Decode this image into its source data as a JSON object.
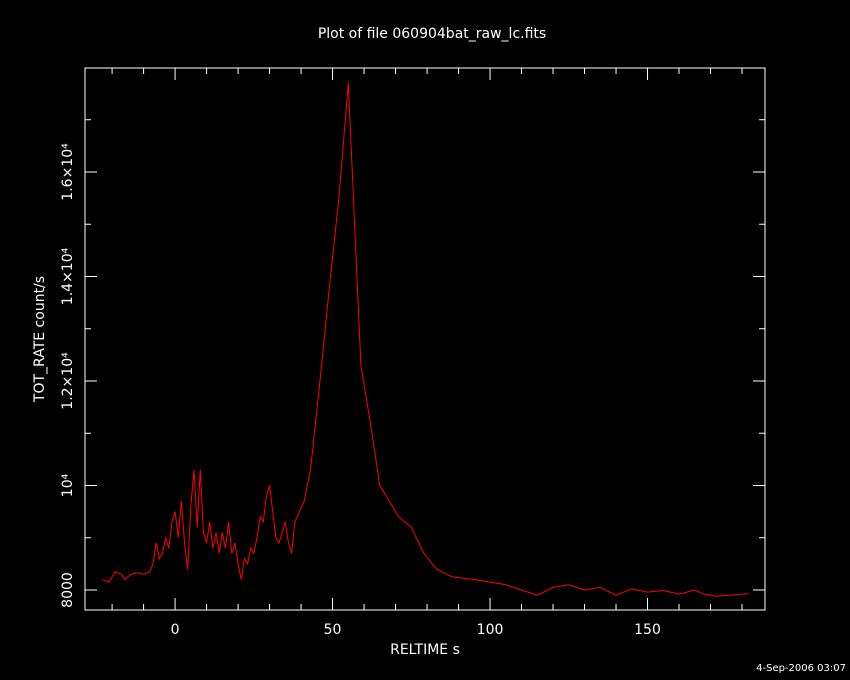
{
  "chart_data": {
    "type": "line",
    "title": "Plot of file 060904bat_raw_lc.fits",
    "x_label": "RELTIME  s",
    "y_label": "TOT_RATE  count/s",
    "footer": "4-Sep-2006 03:07",
    "color": "#ff0000",
    "xlim": [
      -28.6,
      187.3
    ],
    "ylim": [
      7617,
      17990
    ],
    "xticks": [
      0,
      50,
      100,
      150
    ],
    "x_minor_ticks": [
      -20,
      -10,
      10,
      20,
      30,
      40,
      60,
      70,
      80,
      90,
      110,
      120,
      130,
      140,
      160,
      170,
      180
    ],
    "yticks": [
      8000,
      {
        "value": 10000,
        "label": "10⁴"
      },
      {
        "value": 12000,
        "label": "1.2×10⁴"
      },
      {
        "value": 14000,
        "label": "1.4×10⁴"
      },
      {
        "value": 16000,
        "label": "1.6×10⁴"
      }
    ],
    "y_minor_ticks": [
      9000,
      11000,
      13000,
      15000,
      17000
    ],
    "x": [
      -23,
      -21,
      -19,
      -17,
      -16,
      -14,
      -12,
      -10,
      -8,
      -7,
      -6,
      -5,
      -4,
      -3,
      -2,
      -1,
      0,
      1,
      2,
      3,
      4,
      5,
      6,
      7,
      8,
      9,
      10,
      11,
      12,
      13,
      14,
      15,
      16,
      17,
      18,
      19,
      20,
      21,
      22,
      23,
      24,
      25,
      26,
      27,
      28,
      29,
      30,
      31,
      32,
      33,
      34,
      35,
      36,
      37,
      38,
      41,
      43,
      46,
      49,
      52,
      55,
      57,
      59,
      62,
      65,
      68,
      71,
      75,
      79,
      83,
      88,
      95,
      100,
      105,
      110,
      115,
      120,
      125,
      130,
      135,
      140,
      145,
      150,
      155,
      160,
      165,
      168,
      172,
      176,
      182
    ],
    "values": [
      8200,
      8150,
      8350,
      8300,
      8200,
      8300,
      8330,
      8300,
      8350,
      8500,
      8900,
      8600,
      8700,
      9000,
      8800,
      9300,
      9500,
      9000,
      9700,
      8900,
      8400,
      9600,
      10300,
      9200,
      10300,
      9100,
      8900,
      9300,
      8800,
      9100,
      8700,
      9100,
      8800,
      9300,
      8700,
      8900,
      8500,
      8200,
      8600,
      8500,
      8800,
      8700,
      9000,
      9400,
      9300,
      9800,
      10000,
      9500,
      9000,
      8900,
      9100,
      9300,
      8900,
      8700,
      9300,
      9700,
      10300,
      12000,
      13800,
      15500,
      17700,
      15000,
      12300,
      11200,
      10000,
      9700,
      9400,
      9200,
      8700,
      8400,
      8250,
      8200,
      8150,
      8100,
      8000,
      7900,
      8050,
      8100,
      8000,
      8050,
      7900,
      8020,
      7960,
      7990,
      7920,
      8000,
      7920,
      7880,
      7900,
      7930
    ]
  }
}
